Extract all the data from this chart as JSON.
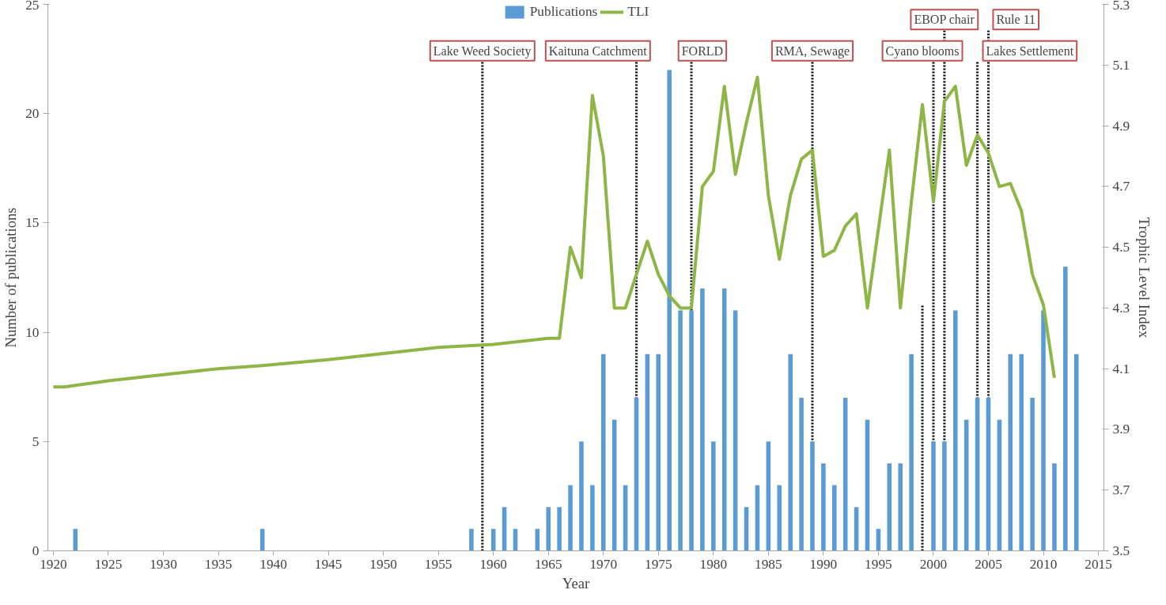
{
  "chart_data": {
    "type": "bar",
    "xlabel": "Year",
    "ylabel": "Number of publications",
    "y2label": "Trophic Level Index",
    "xlim": [
      1919.5,
      2015.5
    ],
    "xticks": [
      1920,
      1925,
      1930,
      1935,
      1940,
      1945,
      1950,
      1955,
      1960,
      1965,
      1970,
      1975,
      1980,
      1985,
      1990,
      1995,
      2000,
      2005,
      2010,
      2015
    ],
    "ylim": [
      0,
      25
    ],
    "yticks": [
      0,
      5,
      10,
      15,
      20,
      25
    ],
    "y2lim": [
      3.5,
      5.3
    ],
    "y2ticks": [
      3.5,
      3.7,
      3.9,
      4.1,
      4.3,
      4.5,
      4.7,
      4.9,
      5.1,
      5.3
    ],
    "grid": false,
    "legend": "top",
    "series": [
      {
        "name": "Publications",
        "color": "#5b9bd5",
        "x": [
          1922,
          1939,
          1958,
          1960,
          1961,
          1962,
          1964,
          1965,
          1966,
          1967,
          1968,
          1969,
          1970,
          1971,
          1972,
          1973,
          1974,
          1975,
          1976,
          1977,
          1978,
          1979,
          1980,
          1981,
          1982,
          1983,
          1984,
          1985,
          1986,
          1987,
          1988,
          1989,
          1990,
          1991,
          1992,
          1993,
          1994,
          1995,
          1996,
          1997,
          1998,
          1999,
          2000,
          2001,
          2002,
          2003,
          2004,
          2005,
          2006,
          2007,
          2008,
          2009,
          2010,
          2011,
          2012,
          2013
        ],
        "values": [
          1,
          1,
          1,
          1,
          2,
          1,
          1,
          2,
          2,
          3,
          5,
          3,
          9,
          6,
          3,
          7,
          9,
          9,
          22,
          11,
          11,
          12,
          5,
          12,
          11,
          2,
          3,
          5,
          3,
          9,
          7,
          5,
          4,
          3,
          7,
          2,
          6,
          1,
          4,
          4,
          9,
          null,
          5,
          5,
          11,
          6,
          7,
          7,
          6,
          9,
          9,
          7,
          11,
          4,
          13,
          9
        ]
      },
      {
        "name": "TLI",
        "type": "line",
        "axis": "y2",
        "color": "#8db646",
        "x": [
          1920,
          1921,
          1925,
          1930,
          1935,
          1939,
          1945,
          1950,
          1955,
          1960,
          1965,
          1966,
          1967,
          1968,
          1969,
          1970,
          1971,
          1972,
          1973,
          1974,
          1975,
          1976,
          1977,
          1978,
          1979,
          1980,
          1981,
          1982,
          1983,
          1984,
          1985,
          1986,
          1987,
          1988,
          1989,
          1990,
          1991,
          1992,
          1993,
          1994,
          1995,
          1996,
          1997,
          1998,
          1999,
          2000,
          2001,
          2002,
          2003,
          2004,
          2005,
          2006,
          2007,
          2008,
          2009,
          2010,
          2011
        ],
        "values": [
          4.04,
          4.04,
          4.06,
          4.08,
          4.1,
          4.11,
          4.13,
          4.15,
          4.17,
          4.18,
          4.2,
          4.2,
          4.5,
          4.4,
          5.0,
          4.8,
          4.3,
          4.3,
          4.41,
          4.52,
          4.41,
          4.34,
          4.3,
          4.3,
          4.7,
          4.75,
          5.03,
          4.74,
          4.91,
          5.06,
          4.67,
          4.46,
          4.67,
          4.79,
          4.82,
          4.47,
          4.49,
          4.57,
          4.61,
          4.3,
          4.56,
          4.82,
          4.3,
          4.65,
          4.97,
          4.65,
          4.98,
          5.03,
          4.77,
          4.87,
          4.81,
          4.7,
          4.71,
          4.62,
          4.41,
          4.31,
          4.07
        ]
      }
    ],
    "ref_lines": [
      {
        "axis": "x",
        "value": 1959,
        "label": "Lake Weed Society",
        "color": "#000000",
        "line_style": "dotted"
      },
      {
        "axis": "x",
        "value": 1973,
        "label": "Kaituna Catchment",
        "color": "#000000",
        "line_style": "dotted"
      },
      {
        "axis": "x",
        "value": 1978,
        "label": "FORLD",
        "color": "#000000",
        "line_style": "dotted"
      },
      {
        "axis": "x",
        "value": 1989,
        "label": "RMA, Sewage",
        "color": "#000000",
        "line_style": "dotted"
      },
      {
        "axis": "x",
        "value": 1999,
        "label": null,
        "color": "#000000",
        "line_style": "dotted"
      },
      {
        "axis": "x",
        "value": 2000,
        "label": "Cyano blooms",
        "color": "#000000",
        "line_style": "dotted"
      },
      {
        "axis": "x",
        "value": 2001,
        "label": "EBOP chair",
        "color": "#000000",
        "line_style": "dotted"
      },
      {
        "axis": "x",
        "value": 2004,
        "label": "Lakes Settlement",
        "color": "#000000",
        "line_style": "dotted"
      },
      {
        "axis": "x",
        "value": 2005,
        "label": "Rule 11",
        "color": "#000000",
        "line_style": "dotted"
      }
    ]
  }
}
